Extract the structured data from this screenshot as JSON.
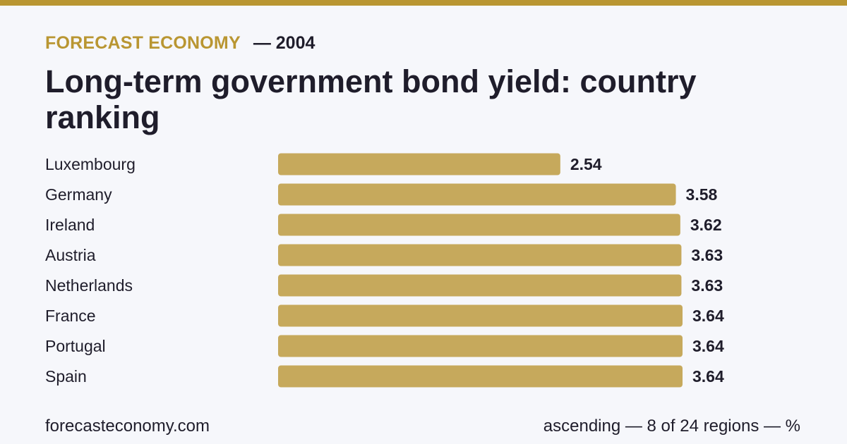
{
  "header": {
    "brand": "FORECAST ECONOMY",
    "year": "— 2004",
    "title": "Long-term government bond yield: country ranking"
  },
  "footer": {
    "site": "forecasteconomy.com",
    "note": "ascending — 8 of 24 regions — %"
  },
  "colors": {
    "accent": "#b99632",
    "bar": "#c6a95c",
    "text": "#1f1d2b",
    "background": "#f6f7fb"
  },
  "chart_data": {
    "type": "bar",
    "orientation": "horizontal",
    "sort": "ascending",
    "categories": [
      "Luxembourg",
      "Germany",
      "Ireland",
      "Austria",
      "Netherlands",
      "France",
      "Portugal",
      "Spain"
    ],
    "values": [
      2.54,
      3.58,
      3.62,
      3.63,
      3.63,
      3.64,
      3.64,
      3.64
    ],
    "value_labels": [
      "2.54",
      "3.58",
      "3.62",
      "3.63",
      "3.63",
      "3.64",
      "3.64",
      "3.64"
    ],
    "xlim": [
      0,
      3.64
    ],
    "grid": false,
    "legend": "none"
  }
}
